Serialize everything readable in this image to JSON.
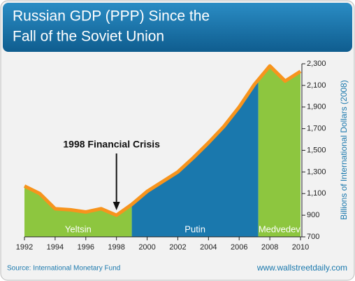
{
  "chart_data": {
    "type": "area",
    "title": [
      "Russian GDP (PPP) Since the",
      "Fall of the Soviet Union"
    ],
    "y_label": "Billions of International Dollars (2008)",
    "x": [
      1992,
      1993,
      1994,
      1995,
      1996,
      1997,
      1998,
      1999,
      2000,
      2001,
      2002,
      2003,
      2004,
      2005,
      2006,
      2007,
      2008,
      2009,
      2010
    ],
    "values": [
      1170,
      1100,
      960,
      950,
      930,
      960,
      900,
      1000,
      1120,
      1210,
      1300,
      1430,
      1570,
      1720,
      1900,
      2110,
      2280,
      2140,
      2230
    ],
    "line_color": "#f7941d",
    "eras": [
      {
        "name": "Yeltsin",
        "start": 1992,
        "end": 1999,
        "color": "#8dc63f"
      },
      {
        "name": "Putin",
        "start": 1999,
        "end": 2007.25,
        "color": "#1a78ad"
      },
      {
        "name": "Medvedev",
        "start": 2007.25,
        "end": 2010,
        "color": "#8dc63f"
      }
    ],
    "annotation": {
      "text": "1998 Financial Crisis",
      "x": 1998
    },
    "xlim": [
      1992,
      2010
    ],
    "xticks": [
      1992,
      1994,
      1996,
      1998,
      2000,
      2002,
      2004,
      2006,
      2008,
      2010
    ],
    "ylim": [
      700,
      2300
    ],
    "yticks": [
      700,
      900,
      {
        "value": 1100,
        "label": "1,100"
      },
      {
        "value": 1300,
        "label": "1,300"
      },
      {
        "value": 1500,
        "label": "1,500"
      },
      {
        "value": 1700,
        "label": "1,700"
      },
      {
        "value": 1900,
        "label": "1,900"
      },
      {
        "value": 2100,
        "label": "2,100"
      },
      {
        "value": 2300,
        "label": "2,300"
      }
    ],
    "source": "Source: International Monetary Fund",
    "website": "www.wallstreetdaily.com"
  }
}
